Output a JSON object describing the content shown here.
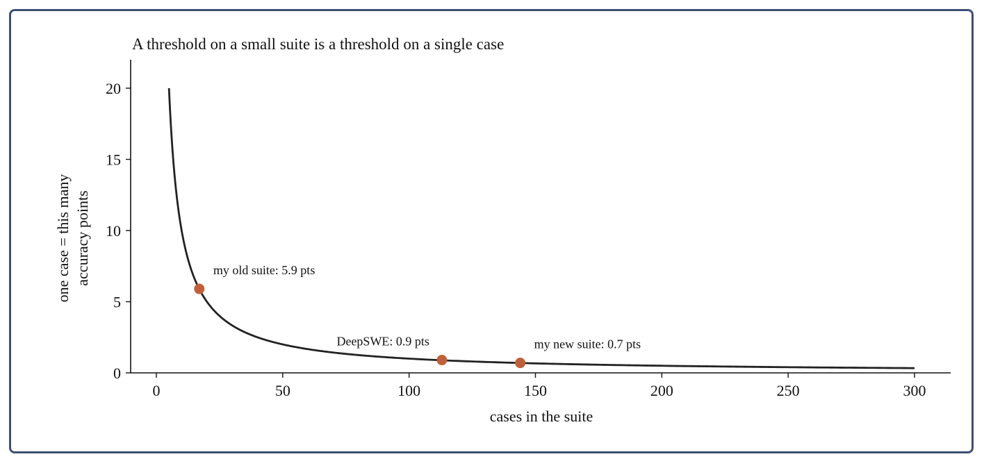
{
  "chart_data": {
    "type": "line",
    "title": "A threshold on a small suite is a threshold on a single case",
    "xlabel": "cases in the suite",
    "ylabel": [
      "one case = this many",
      "accuracy points"
    ],
    "xlim": [
      -10,
      315
    ],
    "ylim": [
      0,
      22
    ],
    "xticks": [
      0,
      50,
      100,
      150,
      200,
      250,
      300
    ],
    "yticks": [
      0,
      5,
      10,
      15,
      20
    ],
    "grid": false,
    "series": [
      {
        "function": "100 / x",
        "x_range": [
          5,
          300
        ],
        "color": "#222222"
      }
    ],
    "points": [
      {
        "x": 17,
        "y": 5.9,
        "label": "my old suite: 5.9 pts",
        "label_anchor": "start"
      },
      {
        "x": 113,
        "y": 0.9,
        "label": "DeepSWE: 0.9 pts",
        "label_anchor": "end"
      },
      {
        "x": 144,
        "y": 0.7,
        "label": "my new suite: 0.7 pts",
        "label_anchor": "start"
      }
    ],
    "point_color": "#c0603a"
  }
}
